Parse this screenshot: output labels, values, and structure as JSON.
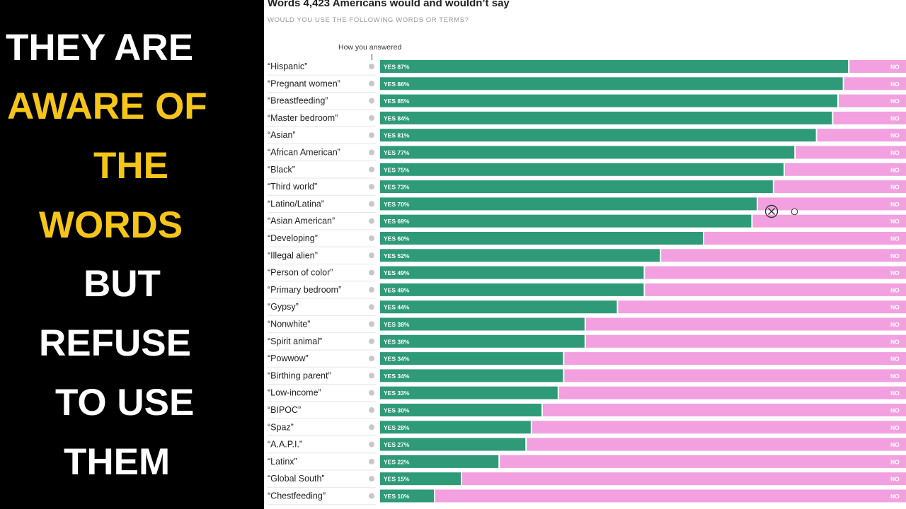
{
  "caption": {
    "lines": [
      {
        "text": "THEY ARE",
        "color": "#ffffff"
      },
      {
        "text": "AWARE OF",
        "color": "#f5c518"
      },
      {
        "text": "THE",
        "color": "#f5c518"
      },
      {
        "text": "WORDS",
        "color": "#f5c518"
      },
      {
        "text": "BUT",
        "color": "#ffffff"
      },
      {
        "text": "REFUSE",
        "color": "#ffffff"
      },
      {
        "text": "TO USE",
        "color": "#ffffff"
      },
      {
        "text": "THEM",
        "color": "#ffffff"
      }
    ]
  },
  "chart_data": {
    "type": "bar",
    "title": "Words 4,423 Americans would and wouldn’t say",
    "subtitle": "WOULD YOU USE THE FOLLOWING WORDS OR TERMS?",
    "legend_label": "How you answered",
    "yes_prefix": "YES",
    "no_label": "NO",
    "categories": [
      "“Hispanic”",
      "“Pregnant women”",
      "“Breastfeeding”",
      "“Master bedroom”",
      "“Asian”",
      "“African American”",
      "“Black”",
      "“Third world”",
      "“Latino/Latina”",
      "“Asian American”",
      "“Developing”",
      "“Illegal alien”",
      "“Person of color”",
      "“Primary bedroom”",
      "“Gypsy”",
      "“Nonwhite”",
      "“Spirit animal”",
      "“Powwow”",
      "“Birthing parent”",
      "“Low-income”",
      "“BIPOC”",
      "“Spaz”",
      "“A.A.P.I.”",
      "“Latinx”",
      "“Global South”",
      "“Chestfeeding”"
    ],
    "values": [
      87,
      86,
      85,
      84,
      81,
      77,
      75,
      73,
      70,
      69,
      60,
      52,
      49,
      49,
      44,
      38,
      38,
      34,
      34,
      33,
      30,
      28,
      27,
      22,
      15,
      10
    ],
    "series": [
      {
        "values": [
          87,
          86,
          85,
          84,
          81,
          77,
          75,
          73,
          70,
          69,
          60,
          52,
          49,
          49,
          44,
          38,
          38,
          34,
          34,
          33,
          30,
          28,
          27,
          22,
          15,
          10
        ]
      }
    ],
    "xlim": [
      0,
      100
    ],
    "colors": {
      "yes": "#2e9a78",
      "no": "#f2a0e0",
      "dot": "#c8c8c8",
      "separator": "#e6e6e6"
    }
  }
}
